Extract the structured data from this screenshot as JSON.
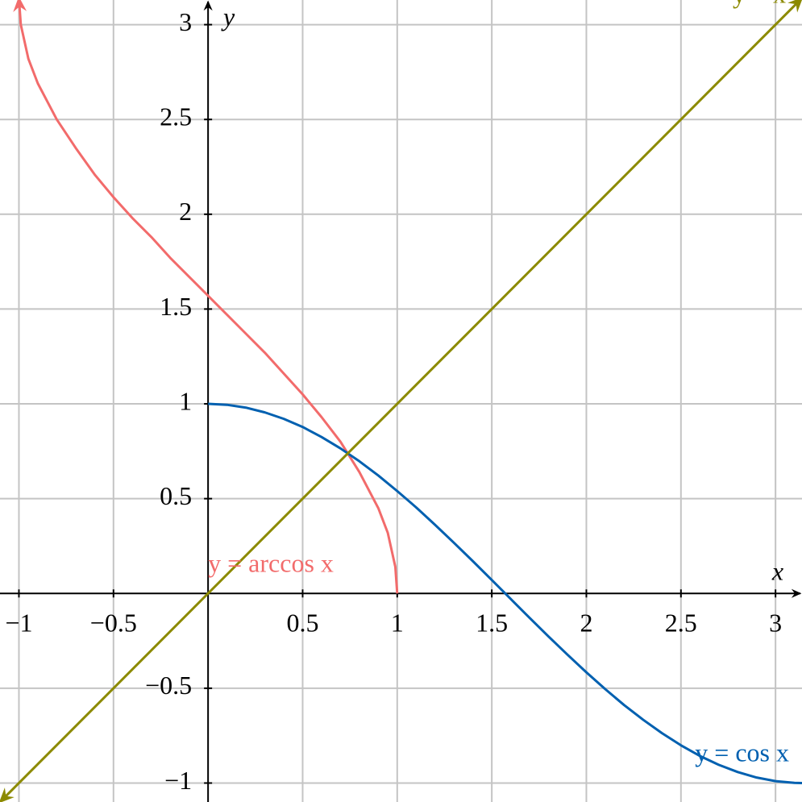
{
  "chart_data": {
    "type": "line",
    "xlabel": "x",
    "ylabel": "y",
    "xlim": [
      -1.1,
      3.14
    ],
    "ylim": [
      -1.1,
      3.13
    ],
    "xticks": [
      {
        "value": -1,
        "label": "−1"
      },
      {
        "value": -0.5,
        "label": "−0.5"
      },
      0.5,
      1,
      1.5,
      2,
      2.5,
      3
    ],
    "yticks": [
      {
        "value": -1,
        "label": "−1"
      },
      {
        "value": -0.5,
        "label": "−0.5"
      },
      0.5,
      1,
      1.5,
      2,
      2.5,
      3
    ],
    "grid": true,
    "series": [
      {
        "name": "y = arccos x",
        "color": "#f26b6b",
        "x": [
          -1,
          -0.99,
          -0.95,
          -0.9,
          -0.8,
          -0.7,
          -0.6,
          -0.5,
          -0.4,
          -0.3,
          -0.2,
          -0.1,
          0,
          0.1,
          0.2,
          0.3,
          0.4,
          0.5,
          0.6,
          0.7,
          0.8,
          0.9,
          0.95,
          0.99,
          1
        ],
        "values": [
          3.14,
          3.0,
          2.82,
          2.69,
          2.5,
          2.35,
          2.21,
          2.09,
          1.98,
          1.88,
          1.77,
          1.67,
          1.57,
          1.47,
          1.37,
          1.27,
          1.16,
          1.05,
          0.93,
          0.8,
          0.64,
          0.45,
          0.32,
          0.14,
          0
        ]
      },
      {
        "name": "y = cos x",
        "color": "#0060b0",
        "x": [
          0,
          0.1,
          0.2,
          0.3,
          0.4,
          0.5,
          0.6,
          0.7,
          0.8,
          0.9,
          1,
          1.1,
          1.2,
          1.3,
          1.4,
          1.5,
          1.6,
          1.7,
          1.8,
          1.9,
          2,
          2.1,
          2.2,
          2.3,
          2.4,
          2.5,
          2.6,
          2.7,
          2.8,
          2.9,
          3,
          3.1,
          3.14
        ],
        "values": [
          1,
          0.995,
          0.98,
          0.955,
          0.921,
          0.878,
          0.825,
          0.765,
          0.697,
          0.622,
          0.54,
          0.454,
          0.362,
          0.267,
          0.17,
          0.071,
          -0.029,
          -0.129,
          -0.227,
          -0.323,
          -0.416,
          -0.505,
          -0.589,
          -0.666,
          -0.737,
          -0.801,
          -0.857,
          -0.904,
          -0.942,
          -0.971,
          -0.99,
          -0.999,
          -1
        ]
      },
      {
        "name": "y = x",
        "color": "#8c8a00",
        "x": [
          -1.1,
          3.14
        ],
        "values": [
          -1.1,
          3.14
        ]
      }
    ]
  }
}
